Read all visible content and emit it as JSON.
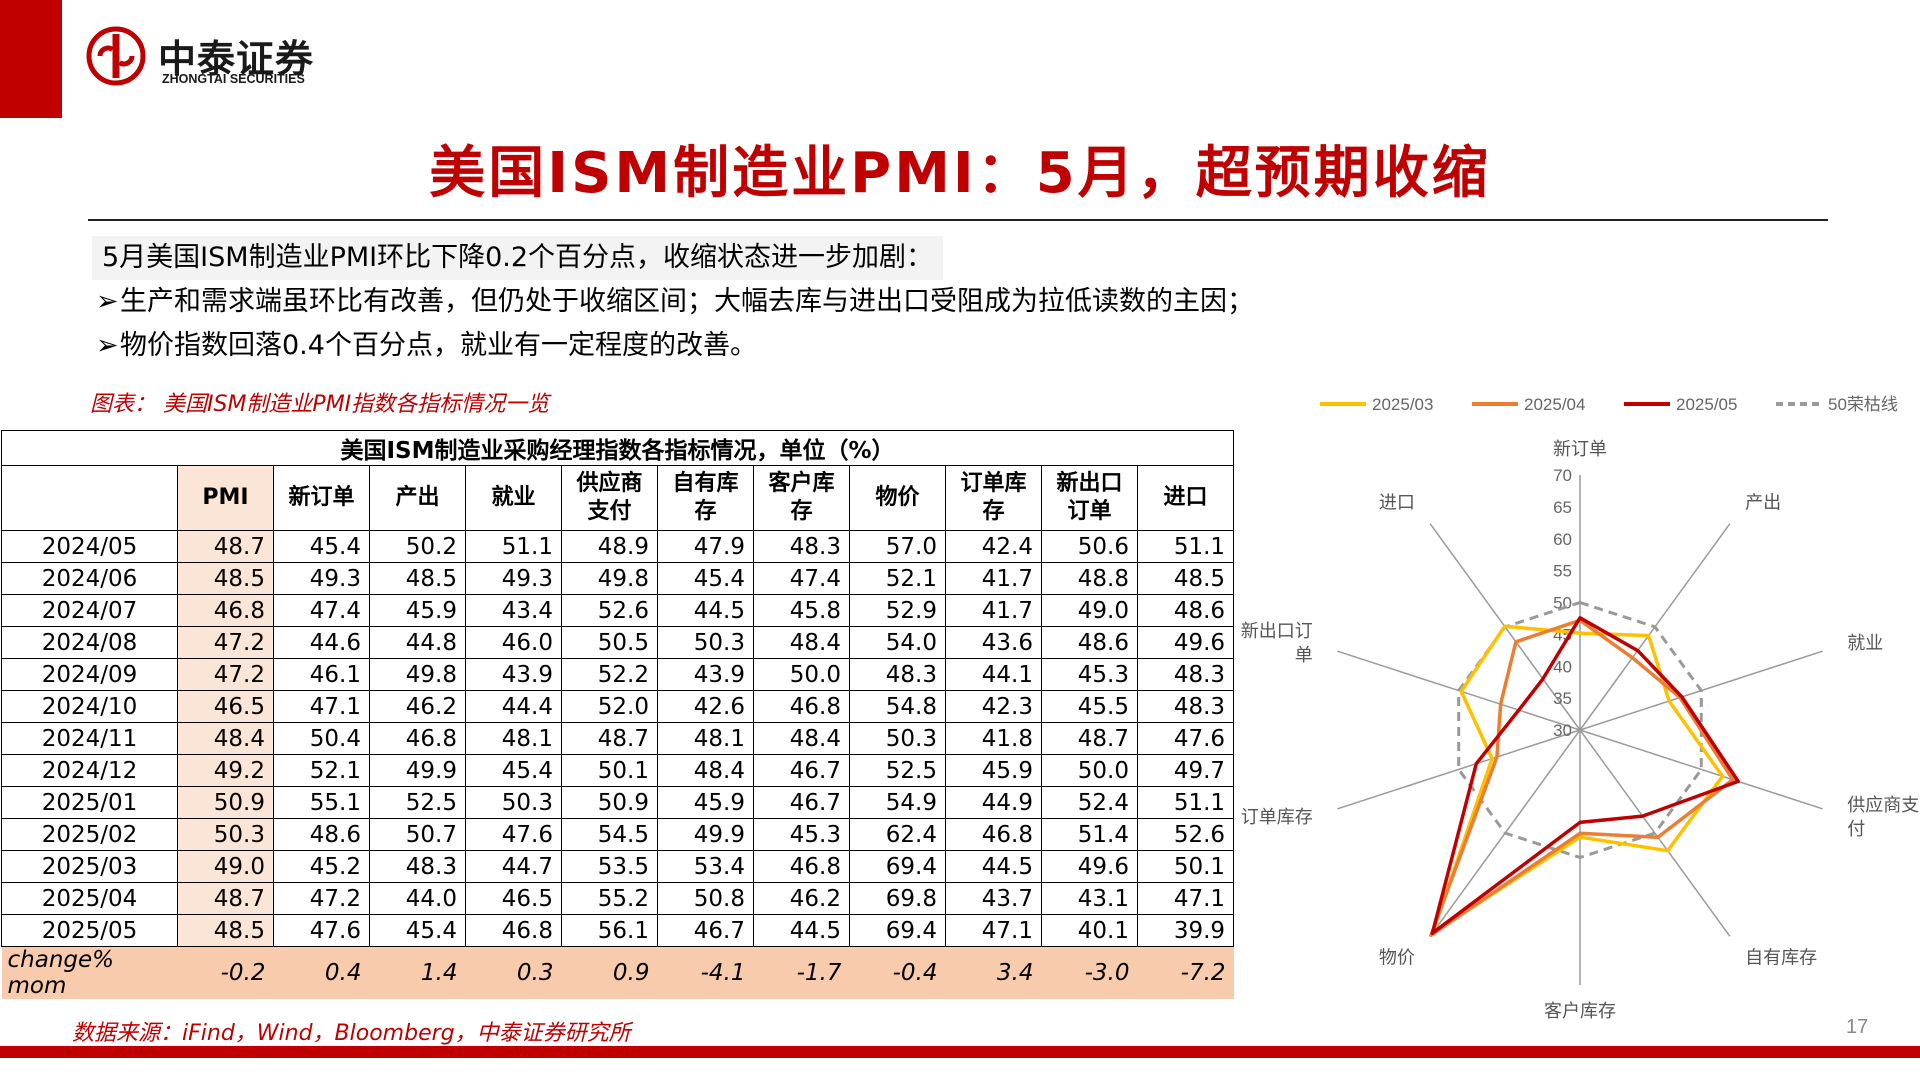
{
  "header": {
    "logo_name": "中泰证券",
    "logo_sub": "ZHONGTAI SECURITIES",
    "title": "美国ISM制造业PMI：5月，超预期收缩"
  },
  "summary": {
    "lead": "5月美国ISM制造业PMI环比下降0.2个百分点，收缩状态进一步加剧：",
    "bullets": [
      "生产和需求端虽环比有改善，但仍处于收缩区间；大幅去库与进出口受阻成为拉低读数的主因；",
      "物价指数回落0.4个百分点，就业有一定程度的改善。"
    ]
  },
  "table": {
    "caption": "图表：  美国ISM制造业PMI指数各指标情况一览",
    "title": "美国ISM制造业采购经理指数各指标情况，单位（%）",
    "headers": [
      "",
      "PMI",
      "新订单",
      "产出",
      "就业",
      "供应商\n支付",
      "自有库\n存",
      "客户库\n存",
      "物价",
      "订单库\n存",
      "新出口\n订单",
      "进口"
    ],
    "rows": [
      [
        "2024/05",
        "48.7",
        "45.4",
        "50.2",
        "51.1",
        "48.9",
        "47.9",
        "48.3",
        "57.0",
        "42.4",
        "50.6",
        "51.1"
      ],
      [
        "2024/06",
        "48.5",
        "49.3",
        "48.5",
        "49.3",
        "49.8",
        "45.4",
        "47.4",
        "52.1",
        "41.7",
        "48.8",
        "48.5"
      ],
      [
        "2024/07",
        "46.8",
        "47.4",
        "45.9",
        "43.4",
        "52.6",
        "44.5",
        "45.8",
        "52.9",
        "41.7",
        "49.0",
        "48.6"
      ],
      [
        "2024/08",
        "47.2",
        "44.6",
        "44.8",
        "46.0",
        "50.5",
        "50.3",
        "48.4",
        "54.0",
        "43.6",
        "48.6",
        "49.6"
      ],
      [
        "2024/09",
        "47.2",
        "46.1",
        "49.8",
        "43.9",
        "52.2",
        "43.9",
        "50.0",
        "48.3",
        "44.1",
        "45.3",
        "48.3"
      ],
      [
        "2024/10",
        "46.5",
        "47.1",
        "46.2",
        "44.4",
        "52.0",
        "42.6",
        "46.8",
        "54.8",
        "42.3",
        "45.5",
        "48.3"
      ],
      [
        "2024/11",
        "48.4",
        "50.4",
        "46.8",
        "48.1",
        "48.7",
        "48.1",
        "48.4",
        "50.3",
        "41.8",
        "48.7",
        "47.6"
      ],
      [
        "2024/12",
        "49.2",
        "52.1",
        "49.9",
        "45.4",
        "50.1",
        "48.4",
        "46.7",
        "52.5",
        "45.9",
        "50.0",
        "49.7"
      ],
      [
        "2025/01",
        "50.9",
        "55.1",
        "52.5",
        "50.3",
        "50.9",
        "45.9",
        "46.7",
        "54.9",
        "44.9",
        "52.4",
        "51.1"
      ],
      [
        "2025/02",
        "50.3",
        "48.6",
        "50.7",
        "47.6",
        "54.5",
        "49.9",
        "45.3",
        "62.4",
        "46.8",
        "51.4",
        "52.6"
      ],
      [
        "2025/03",
        "49.0",
        "45.2",
        "48.3",
        "44.7",
        "53.5",
        "53.4",
        "46.8",
        "69.4",
        "44.5",
        "49.6",
        "50.1"
      ],
      [
        "2025/04",
        "48.7",
        "47.2",
        "44.0",
        "46.5",
        "55.2",
        "50.8",
        "46.2",
        "69.8",
        "43.7",
        "43.1",
        "47.1"
      ],
      [
        "2025/05",
        "48.5",
        "47.6",
        "45.4",
        "46.8",
        "56.1",
        "46.7",
        "44.5",
        "69.4",
        "47.1",
        "40.1",
        "39.9"
      ]
    ],
    "change_row": [
      "change% mom",
      "-0.2",
      "0.4",
      "1.4",
      "0.3",
      "0.9",
      "-4.1",
      "-1.7",
      "-0.4",
      "3.4",
      "-3.0",
      "-7.2"
    ]
  },
  "source": "数据来源：iFind，Wind，Bloomberg，中泰证券研究所",
  "page_number": "17",
  "colors": {
    "brand_red": "#c00000",
    "pmi_fill": "#fbe5d6",
    "change_fill": "#f8cbad"
  },
  "chart_data": {
    "type": "radar",
    "axes": [
      "新订单",
      "产出",
      "就业",
      "供应商支付",
      "自有库存",
      "客户库存",
      "物价",
      "订单库存",
      "新出口订单",
      "进口"
    ],
    "axis_label_lines": [
      [
        "新订单"
      ],
      [
        "产出"
      ],
      [
        "就业"
      ],
      [
        "供应商支",
        "付"
      ],
      [
        "自有库存"
      ],
      [
        "客户库存"
      ],
      [
        "物价"
      ],
      [
        "订单库存"
      ],
      [
        "新出口订",
        "单"
      ],
      [
        "进口"
      ]
    ],
    "rlim": [
      30,
      70
    ],
    "ticks": [
      30,
      35,
      40,
      45,
      50,
      55,
      60,
      65,
      70
    ],
    "legend_position": "top",
    "series": [
      {
        "name": "2025/03",
        "color": "#ffc000",
        "dash": false,
        "values": [
          45.2,
          48.3,
          44.7,
          53.5,
          53.4,
          46.8,
          69.4,
          44.5,
          49.6,
          50.1
        ]
      },
      {
        "name": "2025/04",
        "color": "#ed7d31",
        "dash": false,
        "values": [
          47.2,
          44.0,
          46.5,
          55.2,
          50.8,
          46.2,
          69.8,
          43.7,
          43.1,
          47.1
        ]
      },
      {
        "name": "2025/05",
        "color": "#c00000",
        "dash": false,
        "values": [
          47.6,
          45.4,
          46.8,
          56.1,
          46.7,
          44.5,
          69.4,
          47.1,
          40.1,
          39.9
        ]
      },
      {
        "name": "50荣枯线",
        "color": "#999999",
        "dash": true,
        "values": [
          50,
          50,
          50,
          50,
          50,
          50,
          50,
          50,
          50,
          50
        ]
      }
    ]
  }
}
